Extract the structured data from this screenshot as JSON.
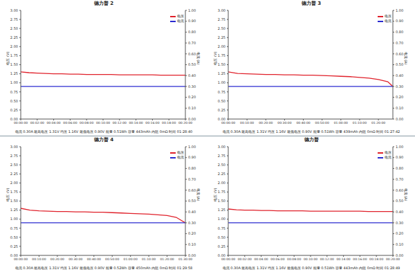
{
  "chart_data": [
    {
      "type": "line",
      "title": "德力普 2",
      "y_label": "电压 (V)",
      "y2_label": "电流 (A)",
      "legend": "upper right",
      "grid": false,
      "annotations": [
        "电流 0.30A 最高电压 1.31V 均压 1.16V 最低电压 0.90V 能量 0.51Wh 容量 443mAh 内阻 0mΩ 时间 01:28:40"
      ],
      "x": [
        0,
        60,
        120,
        180,
        240,
        300,
        360,
        420,
        480,
        540,
        600,
        660,
        720,
        780,
        840,
        900,
        960,
        1020,
        1080,
        1140,
        1200
      ],
      "xlim": [
        0,
        1200
      ],
      "xticks": [
        {
          "value": 0,
          "label": "00:00:00"
        },
        {
          "value": 120,
          "label": "00:02:00"
        },
        {
          "value": 240,
          "label": "00:04:00"
        },
        {
          "value": 360,
          "label": "00:06:00"
        },
        {
          "value": 480,
          "label": "00:08:00"
        },
        {
          "value": 600,
          "label": "00:10:00"
        },
        {
          "value": 720,
          "label": "00:12:00"
        },
        {
          "value": 840,
          "label": "00:14:00"
        },
        {
          "value": 960,
          "label": "00:16:00"
        },
        {
          "value": 1080,
          "label": "00:18:00"
        },
        {
          "value": 1200,
          "label": "00:20:00"
        }
      ],
      "ylim": [
        0,
        3
      ],
      "yticks": [
        {
          "value": 0,
          "label": "0.00"
        },
        {
          "value": 0.25,
          "label": "0.25"
        },
        {
          "value": 0.5,
          "label": "0.50"
        },
        {
          "value": 0.75,
          "label": "0.75"
        },
        {
          "value": 1,
          "label": "1.00"
        },
        {
          "value": 1.25,
          "label": "1.25"
        },
        {
          "value": 1.5,
          "label": "1.50"
        },
        {
          "value": 1.75,
          "label": "1.75"
        },
        {
          "value": 2,
          "label": "2.00"
        },
        {
          "value": 2.25,
          "label": "2.25"
        },
        {
          "value": 2.5,
          "label": "2.50"
        },
        {
          "value": 2.75,
          "label": "2.75"
        },
        {
          "value": 3,
          "label": "3.00"
        }
      ],
      "y2lim": [
        0,
        1
      ],
      "y2ticks": [
        {
          "value": 0,
          "label": "0.00"
        },
        {
          "value": 0.1,
          "label": "0.10"
        },
        {
          "value": 0.2,
          "label": "0.20"
        },
        {
          "value": 0.3,
          "label": "0.30"
        },
        {
          "value": 0.4,
          "label": "0.40"
        },
        {
          "value": 0.5,
          "label": "0.50"
        },
        {
          "value": 0.6,
          "label": "0.60"
        },
        {
          "value": 0.7,
          "label": "0.70"
        },
        {
          "value": 0.8,
          "label": "0.80"
        },
        {
          "value": 0.9,
          "label": "0.90"
        },
        {
          "value": 1,
          "label": "1.00"
        }
      ],
      "series": [
        {
          "name": "电压",
          "color": "#e0202a",
          "values": [
            1.3,
            1.28,
            1.27,
            1.26,
            1.25,
            1.25,
            1.24,
            1.24,
            1.23,
            1.23,
            1.23,
            1.23,
            1.22,
            1.22,
            1.22,
            1.22,
            1.22,
            1.21,
            1.21,
            1.21,
            1.21
          ]
        },
        {
          "name": "电流",
          "color": "#2a2ad0",
          "axis": "y2",
          "values": [
            0.3,
            0.3,
            0.3,
            0.3,
            0.3,
            0.3,
            0.3,
            0.3,
            0.3,
            0.3,
            0.3,
            0.3,
            0.3,
            0.3,
            0.3,
            0.3,
            0.3,
            0.3,
            0.3,
            0.3,
            0.3
          ]
        }
      ]
    },
    {
      "type": "line",
      "title": "德力普 3",
      "y_label": "电压 (V)",
      "y2_label": "电流 (A)",
      "legend": "upper right",
      "grid": false,
      "annotations": [
        "电流 0.30A 最高电压 1.31V 均压 1.16V 最低电压 0.90V 能量 0.51Wh 容量 439mAh 内阻 0mΩ 时间 01:27:42"
      ],
      "x": [
        0,
        300,
        600,
        900,
        1200,
        1500,
        1800,
        2100,
        2400,
        2700,
        3000,
        3300,
        3600,
        3900,
        4200,
        4500,
        4800,
        5100,
        5262
      ],
      "xlim": [
        0,
        5262
      ],
      "xticks": [
        {
          "value": 0,
          "label": "00:00:00"
        },
        {
          "value": 600,
          "label": "00:10:00"
        },
        {
          "value": 1200,
          "label": "00:20:00"
        },
        {
          "value": 1800,
          "label": "00:30:00"
        },
        {
          "value": 2400,
          "label": "00:40:00"
        },
        {
          "value": 3000,
          "label": "00:50:00"
        },
        {
          "value": 3600,
          "label": "01:00:00"
        },
        {
          "value": 4200,
          "label": "01:10:00"
        },
        {
          "value": 4800,
          "label": "01:20:00"
        }
      ],
      "ylim": [
        0,
        3
      ],
      "yticks": [
        {
          "value": 0,
          "label": "0.00"
        },
        {
          "value": 0.25,
          "label": "0.25"
        },
        {
          "value": 0.5,
          "label": "0.50"
        },
        {
          "value": 0.75,
          "label": "0.75"
        },
        {
          "value": 1,
          "label": "1.00"
        },
        {
          "value": 1.25,
          "label": "1.25"
        },
        {
          "value": 1.5,
          "label": "1.50"
        },
        {
          "value": 1.75,
          "label": "1.75"
        },
        {
          "value": 2,
          "label": "2.00"
        },
        {
          "value": 2.25,
          "label": "2.25"
        },
        {
          "value": 2.5,
          "label": "2.50"
        },
        {
          "value": 2.75,
          "label": "2.75"
        },
        {
          "value": 3,
          "label": "3.00"
        }
      ],
      "y2lim": [
        0,
        1
      ],
      "y2ticks": [
        {
          "value": 0,
          "label": "0.00"
        },
        {
          "value": 0.1,
          "label": "0.10"
        },
        {
          "value": 0.2,
          "label": "0.20"
        },
        {
          "value": 0.3,
          "label": "0.30"
        },
        {
          "value": 0.4,
          "label": "0.40"
        },
        {
          "value": 0.5,
          "label": "0.50"
        },
        {
          "value": 0.6,
          "label": "0.60"
        },
        {
          "value": 0.7,
          "label": "0.70"
        },
        {
          "value": 0.8,
          "label": "0.80"
        },
        {
          "value": 0.9,
          "label": "0.90"
        },
        {
          "value": 1,
          "label": "1.00"
        }
      ],
      "series": [
        {
          "name": "电压",
          "color": "#e0202a",
          "values": [
            1.3,
            1.26,
            1.25,
            1.24,
            1.23,
            1.23,
            1.22,
            1.22,
            1.21,
            1.21,
            1.2,
            1.19,
            1.18,
            1.17,
            1.15,
            1.13,
            1.09,
            1.03,
            0.9
          ]
        },
        {
          "name": "电流",
          "color": "#2a2ad0",
          "axis": "y2",
          "values": [
            0.3,
            0.3,
            0.3,
            0.3,
            0.3,
            0.3,
            0.3,
            0.3,
            0.3,
            0.3,
            0.3,
            0.3,
            0.3,
            0.3,
            0.3,
            0.3,
            0.3,
            0.3,
            0.3
          ]
        }
      ]
    },
    {
      "type": "line",
      "title": "德力普 4",
      "y_label": "电压 (V)",
      "y2_label": "电流 (A)",
      "legend": "upper right",
      "grid": false,
      "annotations": [
        "电流 0.30A 最高电压 1.31V 均压 1.16V 最低电压 0.90V 能量 0.52Wh 容量 450mAh 内阻 0mΩ 时间 01:29:58"
      ],
      "x": [
        0,
        300,
        600,
        900,
        1200,
        1500,
        1800,
        2100,
        2400,
        2700,
        3000,
        3300,
        3600,
        3900,
        4200,
        4500,
        4800,
        5100,
        5398
      ],
      "xlim": [
        0,
        5400
      ],
      "xticks": [
        {
          "value": 0,
          "label": "00:00:00"
        },
        {
          "value": 600,
          "label": "00:10:00"
        },
        {
          "value": 1200,
          "label": "00:20:00"
        },
        {
          "value": 1800,
          "label": "00:30:00"
        },
        {
          "value": 2400,
          "label": "00:40:00"
        },
        {
          "value": 3000,
          "label": "00:50:00"
        },
        {
          "value": 3600,
          "label": "01:00:00"
        },
        {
          "value": 4200,
          "label": "01:10:00"
        },
        {
          "value": 4800,
          "label": "01:20:00"
        },
        {
          "value": 5400,
          "label": "01:30:00"
        }
      ],
      "ylim": [
        0,
        3
      ],
      "yticks": [
        {
          "value": 0,
          "label": "0.00"
        },
        {
          "value": 0.25,
          "label": "0.25"
        },
        {
          "value": 0.5,
          "label": "0.50"
        },
        {
          "value": 0.75,
          "label": "0.75"
        },
        {
          "value": 1,
          "label": "1.00"
        },
        {
          "value": 1.25,
          "label": "1.25"
        },
        {
          "value": 1.5,
          "label": "1.50"
        },
        {
          "value": 1.75,
          "label": "1.75"
        },
        {
          "value": 2,
          "label": "2.00"
        },
        {
          "value": 2.25,
          "label": "2.25"
        },
        {
          "value": 2.5,
          "label": "2.50"
        },
        {
          "value": 2.75,
          "label": "2.75"
        },
        {
          "value": 3,
          "label": "3.00"
        }
      ],
      "y2lim": [
        0,
        1
      ],
      "y2ticks": [
        {
          "value": 0,
          "label": "0.00"
        },
        {
          "value": 0.1,
          "label": "0.10"
        },
        {
          "value": 0.2,
          "label": "0.20"
        },
        {
          "value": 0.3,
          "label": "0.30"
        },
        {
          "value": 0.4,
          "label": "0.40"
        },
        {
          "value": 0.5,
          "label": "0.50"
        },
        {
          "value": 0.6,
          "label": "0.60"
        },
        {
          "value": 0.7,
          "label": "0.70"
        },
        {
          "value": 0.8,
          "label": "0.80"
        },
        {
          "value": 0.9,
          "label": "0.90"
        },
        {
          "value": 1,
          "label": "1.00"
        }
      ],
      "series": [
        {
          "name": "电压",
          "color": "#e0202a",
          "values": [
            1.3,
            1.25,
            1.23,
            1.22,
            1.21,
            1.21,
            1.2,
            1.2,
            1.19,
            1.19,
            1.18,
            1.17,
            1.16,
            1.15,
            1.14,
            1.12,
            1.1,
            1.05,
            0.9
          ]
        },
        {
          "name": "电流",
          "color": "#2a2ad0",
          "axis": "y2",
          "values": [
            0.3,
            0.3,
            0.3,
            0.3,
            0.3,
            0.3,
            0.3,
            0.3,
            0.3,
            0.3,
            0.3,
            0.3,
            0.3,
            0.3,
            0.3,
            0.3,
            0.3,
            0.3,
            0.3
          ]
        }
      ]
    },
    {
      "type": "line",
      "title": "德力普",
      "y_label": "电压 (V)",
      "y2_label": "电流 (A)",
      "legend": "upper right",
      "grid": false,
      "annotations": [
        "电流 0.30A 最高电压 1.31V 均压 1.16V 最低电压 0.90V 能量 0.51Wh 容量 443mAh 内阻 0mΩ 时间 01:28:49"
      ],
      "x": [
        0,
        60,
        120,
        180,
        240,
        300,
        360,
        420,
        480,
        540,
        600,
        660,
        720,
        780,
        840,
        900,
        960,
        1020,
        1080,
        1140,
        1200
      ],
      "xlim": [
        0,
        1200
      ],
      "xticks": [
        {
          "value": 0,
          "label": "00:00:00"
        },
        {
          "value": 120,
          "label": "00:02:00"
        },
        {
          "value": 240,
          "label": "00:04:00"
        },
        {
          "value": 360,
          "label": "00:06:00"
        },
        {
          "value": 480,
          "label": "00:08:00"
        },
        {
          "value": 600,
          "label": "00:10:00"
        },
        {
          "value": 720,
          "label": "00:12:00"
        },
        {
          "value": 840,
          "label": "00:14:00"
        },
        {
          "value": 960,
          "label": "00:16:00"
        },
        {
          "value": 1080,
          "label": "00:18:00"
        },
        {
          "value": 1200,
          "label": "00:20:00"
        }
      ],
      "ylim": [
        0,
        3
      ],
      "yticks": [
        {
          "value": 0,
          "label": "0.00"
        },
        {
          "value": 0.25,
          "label": "0.25"
        },
        {
          "value": 0.5,
          "label": "0.50"
        },
        {
          "value": 0.75,
          "label": "0.75"
        },
        {
          "value": 1,
          "label": "1.00"
        },
        {
          "value": 1.25,
          "label": "1.25"
        },
        {
          "value": 1.5,
          "label": "1.50"
        },
        {
          "value": 1.75,
          "label": "1.75"
        },
        {
          "value": 2,
          "label": "2.00"
        },
        {
          "value": 2.25,
          "label": "2.25"
        },
        {
          "value": 2.5,
          "label": "2.50"
        },
        {
          "value": 2.75,
          "label": "2.75"
        },
        {
          "value": 3,
          "label": "3.00"
        }
      ],
      "y2lim": [
        0,
        1
      ],
      "y2ticks": [
        {
          "value": 0,
          "label": "0.00"
        },
        {
          "value": 0.1,
          "label": "0.10"
        },
        {
          "value": 0.2,
          "label": "0.20"
        },
        {
          "value": 0.3,
          "label": "0.30"
        },
        {
          "value": 0.4,
          "label": "0.40"
        },
        {
          "value": 0.5,
          "label": "0.50"
        },
        {
          "value": 0.6,
          "label": "0.60"
        },
        {
          "value": 0.7,
          "label": "0.70"
        },
        {
          "value": 0.8,
          "label": "0.80"
        },
        {
          "value": 0.9,
          "label": "0.90"
        },
        {
          "value": 1,
          "label": "1.00"
        }
      ],
      "series": [
        {
          "name": "电压",
          "color": "#e0202a",
          "values": [
            1.28,
            1.26,
            1.25,
            1.25,
            1.24,
            1.24,
            1.23,
            1.23,
            1.23,
            1.23,
            1.22,
            1.22,
            1.22,
            1.22,
            1.22,
            1.22,
            1.22,
            1.21,
            1.21,
            1.21,
            1.21
          ]
        },
        {
          "name": "电流",
          "color": "#2a2ad0",
          "axis": "y2",
          "values": [
            0.3,
            0.3,
            0.3,
            0.3,
            0.3,
            0.3,
            0.3,
            0.3,
            0.3,
            0.3,
            0.3,
            0.3,
            0.3,
            0.3,
            0.3,
            0.3,
            0.3,
            0.3,
            0.3,
            0.3,
            0.3
          ]
        }
      ]
    }
  ]
}
